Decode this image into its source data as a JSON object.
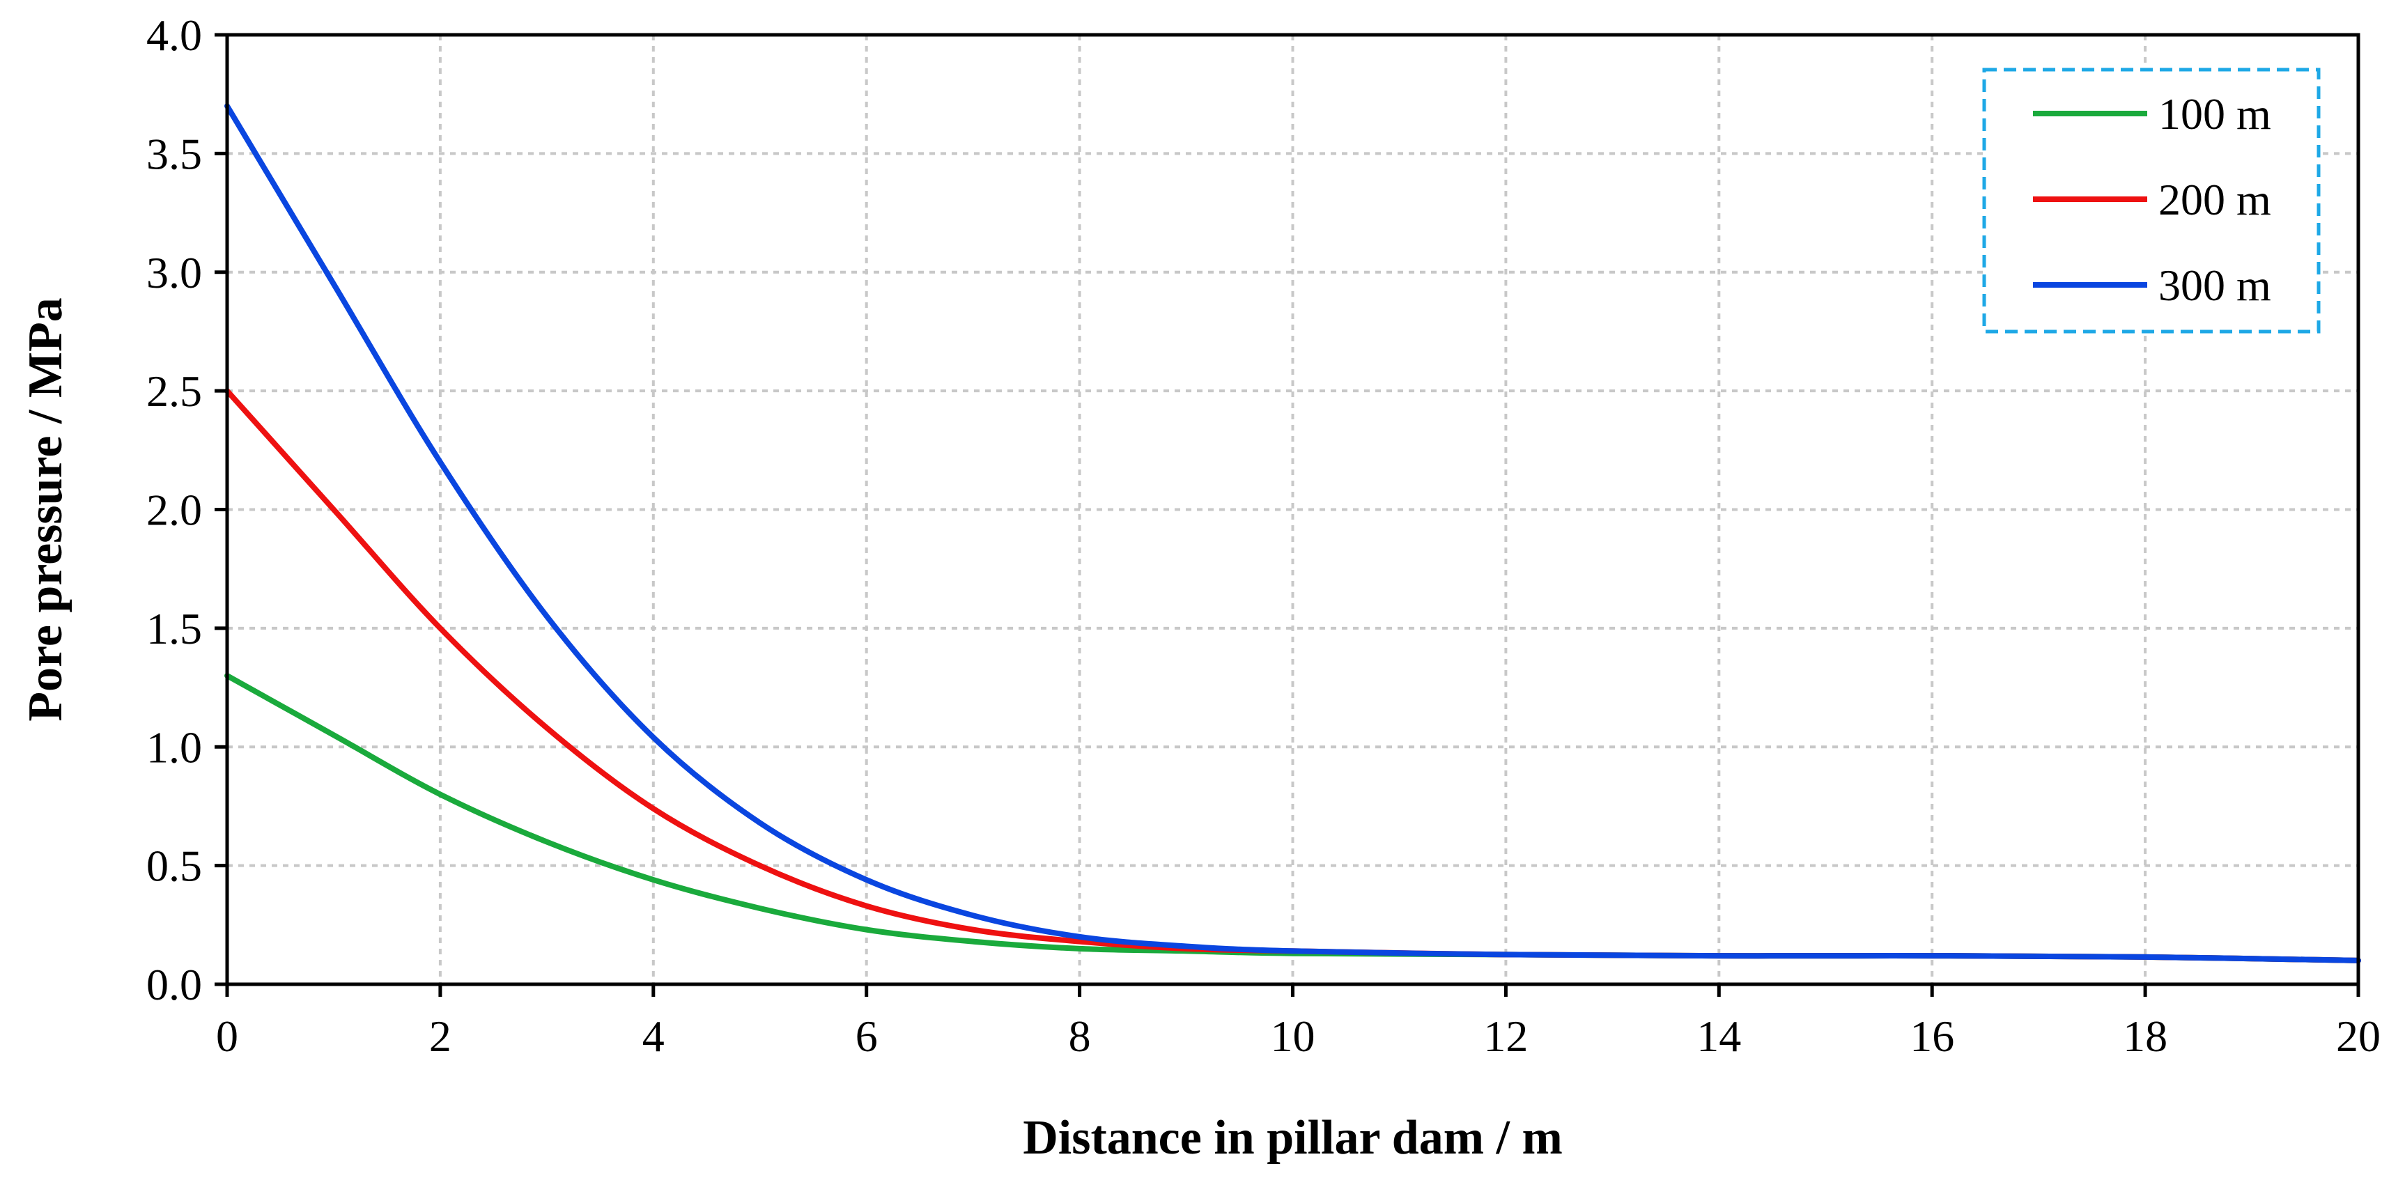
{
  "chart_data": {
    "type": "line",
    "xlabel": "Distance in pillar dam / m",
    "ylabel": "Pore pressure / MPa",
    "xlim": [
      0,
      20
    ],
    "ylim": [
      0,
      4.0
    ],
    "xticks": [
      0,
      2,
      4,
      6,
      8,
      10,
      12,
      14,
      16,
      18,
      20
    ],
    "xtick_labels": [
      "0",
      "2",
      "4",
      "6",
      "8",
      "10",
      "12",
      "14",
      "16",
      "18",
      "20"
    ],
    "yticks": [
      0,
      0.5,
      1.0,
      1.5,
      2.0,
      2.5,
      3.0,
      3.5,
      4.0
    ],
    "ytick_labels": [
      "0.0",
      "0.5",
      "1.0",
      "1.5",
      "2.0",
      "2.5",
      "3.0",
      "3.5",
      "4.0"
    ],
    "grid": true,
    "legend_position": "top-right",
    "series": [
      {
        "name": "100 m",
        "color": "#1aaa3c",
        "x": [
          0,
          1,
          2,
          3,
          4,
          5,
          6,
          7,
          8,
          9,
          10,
          12,
          14,
          16,
          18,
          20
        ],
        "y": [
          1.3,
          1.05,
          0.8,
          0.6,
          0.44,
          0.32,
          0.23,
          0.18,
          0.15,
          0.14,
          0.13,
          0.125,
          0.12,
          0.12,
          0.115,
          0.1
        ]
      },
      {
        "name": "200 m",
        "color": "#ee1111",
        "x": [
          0,
          1,
          2,
          3,
          4,
          5,
          6,
          7,
          8,
          9,
          10,
          12,
          14,
          16,
          18,
          20
        ],
        "y": [
          2.5,
          2.0,
          1.5,
          1.08,
          0.74,
          0.5,
          0.33,
          0.23,
          0.18,
          0.15,
          0.14,
          0.125,
          0.12,
          0.12,
          0.115,
          0.1
        ]
      },
      {
        "name": "300 m",
        "color": "#0a46e0",
        "x": [
          0,
          1,
          2,
          3,
          4,
          5,
          6,
          7,
          8,
          9,
          10,
          12,
          14,
          16,
          18,
          20
        ],
        "y": [
          3.7,
          2.95,
          2.2,
          1.55,
          1.04,
          0.68,
          0.44,
          0.29,
          0.2,
          0.16,
          0.14,
          0.125,
          0.12,
          0.12,
          0.115,
          0.1
        ]
      }
    ]
  },
  "colors": {
    "grid": "#c8c8c8",
    "axis": "#000000",
    "legend_border": "#1ea8e6"
  }
}
